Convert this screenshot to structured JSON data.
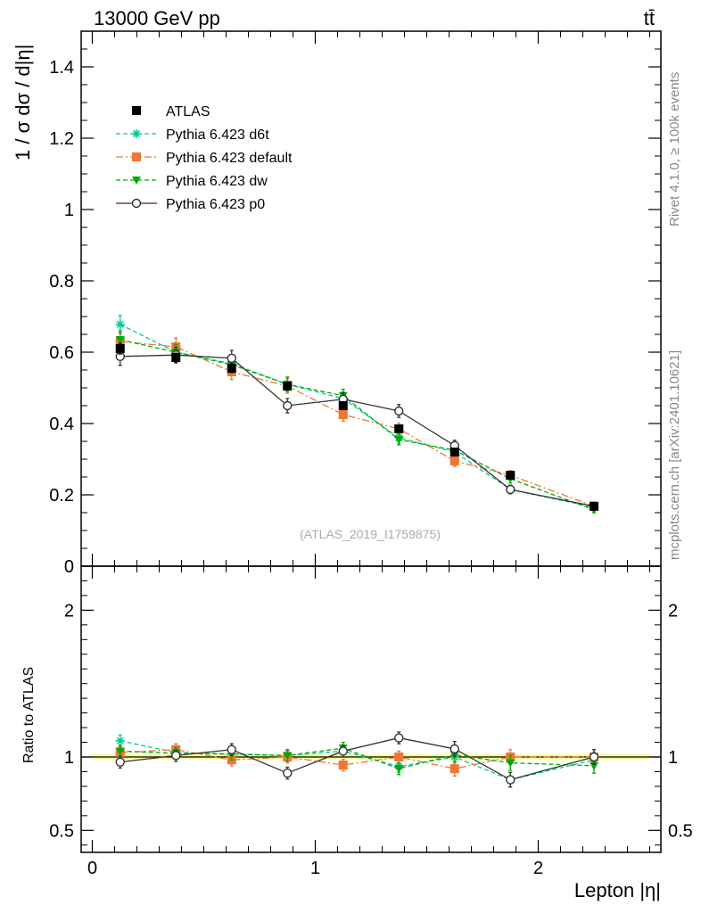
{
  "header": {
    "process_left": "13000 GeV pp",
    "process_right": "tt̄",
    "side_label_top": "Rivet 4.1.0, ≥ 100k events",
    "side_label_bottom": "mcplots.cern.ch [arXiv:2401.10621]",
    "analysis_id": "(ATLAS_2019_I1759875)"
  },
  "chart_data": [
    {
      "type": "scatter",
      "panel": "main",
      "ylabel": "1 / σ  dσ / d|η|",
      "xlabel": "Lepton |η|",
      "xlim": [
        -0.05,
        2.55
      ],
      "ylim": [
        0,
        1.5
      ],
      "y_ticks": [
        0,
        0.2,
        0.4,
        0.6,
        0.8,
        1,
        1.2,
        1.4
      ],
      "y_tick_labels": [
        "0",
        "0.2",
        "0.4",
        "0.6",
        "0.8",
        "1",
        "1.2",
        "1.4"
      ],
      "x": [
        0.125,
        0.375,
        0.625,
        0.875,
        1.125,
        1.375,
        1.625,
        1.875,
        2.25
      ],
      "series": [
        {
          "name": "ATLAS",
          "color": "#000000",
          "marker": "square",
          "line": "none",
          "values": [
            0.61,
            0.585,
            0.555,
            0.505,
            0.45,
            0.385,
            0.32,
            0.255,
            0.168
          ],
          "errors": [
            0.015,
            0.012,
            0.012,
            0.01,
            0.01,
            0.008,
            0.008,
            0.007,
            0.005
          ]
        },
        {
          "name": "Pythia 6.423 d6t",
          "color": "#00cc99",
          "marker": "star",
          "line": "dashed",
          "values": [
            0.678,
            0.6,
            0.568,
            0.51,
            0.47,
            0.36,
            0.32,
            0.215,
            0.165
          ],
          "errors": [
            0.025,
            0.022,
            0.022,
            0.02,
            0.018,
            0.015,
            0.015,
            0.012,
            0.008
          ]
        },
        {
          "name": "Pythia 6.423 default",
          "color": "#ee7733",
          "marker": "square",
          "line": "dashdot",
          "values": [
            0.63,
            0.615,
            0.545,
            0.505,
            0.425,
            0.385,
            0.295,
            0.255,
            0.168
          ],
          "errors": [
            0.025,
            0.025,
            0.022,
            0.02,
            0.018,
            0.016,
            0.015,
            0.013,
            0.008
          ]
        },
        {
          "name": "Pythia 6.423 dw",
          "color": "#00aa00",
          "marker": "triangle-down",
          "line": "dashed",
          "values": [
            0.635,
            0.6,
            0.565,
            0.51,
            0.478,
            0.355,
            0.325,
            0.245,
            0.158
          ],
          "errors": [
            0.025,
            0.022,
            0.022,
            0.02,
            0.018,
            0.015,
            0.015,
            0.012,
            0.008
          ]
        },
        {
          "name": "Pythia 6.423 p0",
          "color": "#333333",
          "marker": "open-circle",
          "line": "solid",
          "values": [
            0.588,
            0.592,
            0.583,
            0.45,
            0.468,
            0.435,
            0.338,
            0.215,
            0.168
          ],
          "errors": [
            0.025,
            0.022,
            0.022,
            0.02,
            0.018,
            0.018,
            0.015,
            0.012,
            0.008
          ]
        }
      ]
    },
    {
      "type": "scatter",
      "panel": "ratio",
      "ylabel": "Ratio to ATLAS",
      "xlabel": "Lepton |η|",
      "xlim": [
        -0.05,
        2.55
      ],
      "ylim": [
        0.35,
        2.3
      ],
      "y_ticks": [
        0.5,
        1,
        2
      ],
      "y_tick_labels": [
        "0.5",
        "1",
        "2"
      ],
      "x_ticks": [
        0,
        1,
        2
      ],
      "x_tick_labels": [
        "0",
        "1",
        "2"
      ],
      "reference_band": {
        "color": "#ffff66",
        "low": 0.98,
        "high": 1.02
      },
      "x": [
        0.125,
        0.375,
        0.625,
        0.875,
        1.125,
        1.375,
        1.625,
        1.875,
        2.25
      ],
      "series": [
        {
          "name": "Pythia 6.423 d6t",
          "color": "#00cc99",
          "marker": "star",
          "line": "dashed",
          "values": [
            1.11,
            1.03,
            1.02,
            1.01,
            1.04,
            0.935,
            1.0,
            0.845,
            0.98
          ],
          "errors": [
            0.04,
            0.04,
            0.04,
            0.04,
            0.04,
            0.04,
            0.05,
            0.05,
            0.05
          ]
        },
        {
          "name": "Pythia 6.423 default",
          "color": "#ee7733",
          "marker": "square",
          "line": "dashdot",
          "values": [
            1.03,
            1.05,
            0.98,
            1.0,
            0.945,
            1.0,
            0.92,
            1.0,
            1.0
          ],
          "errors": [
            0.04,
            0.04,
            0.04,
            0.04,
            0.04,
            0.04,
            0.05,
            0.05,
            0.05
          ]
        },
        {
          "name": "Pythia 6.423 dw",
          "color": "#00aa00",
          "marker": "triangle-down",
          "line": "dashed",
          "values": [
            1.04,
            1.025,
            1.02,
            1.01,
            1.06,
            0.92,
            1.015,
            0.96,
            0.94
          ],
          "errors": [
            0.04,
            0.04,
            0.04,
            0.04,
            0.04,
            0.04,
            0.05,
            0.05,
            0.05
          ]
        },
        {
          "name": "Pythia 6.423 p0",
          "color": "#333333",
          "marker": "open-circle",
          "line": "solid",
          "values": [
            0.965,
            1.01,
            1.05,
            0.89,
            1.04,
            1.13,
            1.055,
            0.845,
            1.0
          ],
          "errors": [
            0.04,
            0.04,
            0.04,
            0.04,
            0.04,
            0.04,
            0.05,
            0.05,
            0.05
          ]
        }
      ]
    }
  ]
}
